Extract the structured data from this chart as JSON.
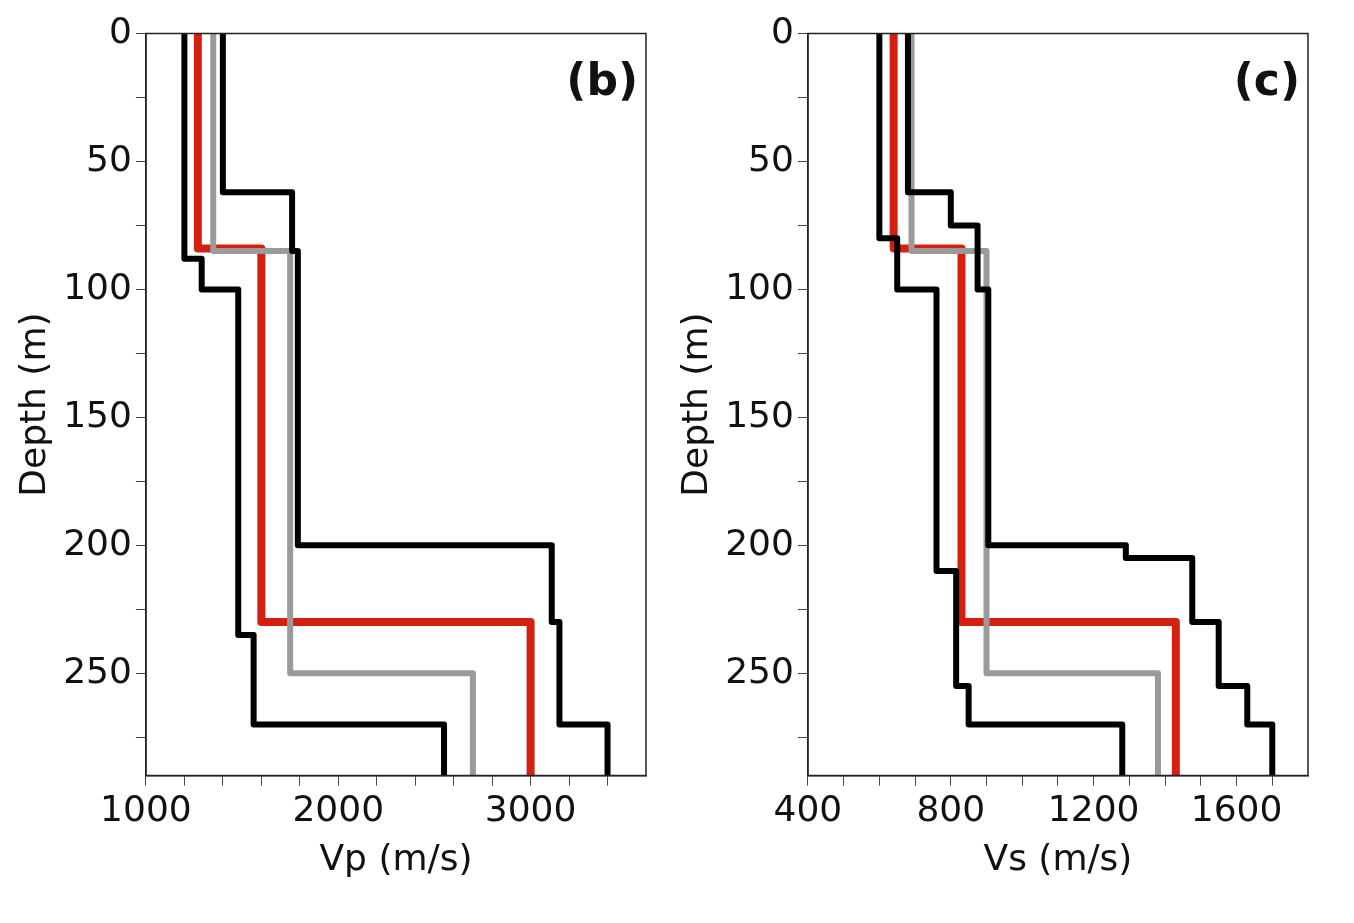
{
  "chart_data": [
    {
      "type": "line",
      "xlabel": "Vp (m/s)",
      "ylabel": "Depth (m)",
      "annotations": [
        "(b)"
      ],
      "xlim": [
        1000,
        3600
      ],
      "ylim": [
        290,
        0
      ],
      "xticks": [
        1000,
        {
          "value": 1200,
          "label": null
        },
        {
          "value": 1400,
          "label": null
        },
        {
          "value": 1600,
          "label": null
        },
        {
          "value": 1800,
          "label": null
        },
        2000,
        {
          "value": 2200,
          "label": null
        },
        {
          "value": 2400,
          "label": null
        },
        {
          "value": 2600,
          "label": null
        },
        {
          "value": 2800,
          "label": null
        },
        3000,
        {
          "value": 3200,
          "label": null
        },
        {
          "value": 3400,
          "label": null
        }
      ],
      "yticks": [
        0,
        {
          "value": 25,
          "label": null
        },
        50,
        {
          "value": 75,
          "label": null
        },
        100,
        {
          "value": 125,
          "label": null
        },
        150,
        {
          "value": 175,
          "label": null
        },
        200,
        {
          "value": 225,
          "label": null
        },
        250,
        {
          "value": 275,
          "label": null
        }
      ],
      "grid": false,
      "legend": false,
      "marker": "none",
      "line_style": "solid",
      "series": [
        {
          "color": "#000000",
          "x": [
            1200,
            1200,
            1290,
            1290,
            1480,
            1480,
            1560,
            1560,
            2550,
            2550
          ],
          "values": [
            0,
            88,
            88,
            100,
            100,
            235,
            235,
            270,
            270,
            290
          ]
        },
        {
          "color": "#000000",
          "x": [
            1400,
            1400,
            1760,
            1760,
            1790,
            1790,
            3110,
            3110,
            3150,
            3150,
            3400,
            3400
          ],
          "values": [
            0,
            62,
            62,
            85,
            85,
            200,
            200,
            230,
            230,
            270,
            270,
            290
          ]
        },
        {
          "color": "#9a9a9a",
          "x": [
            1350,
            1350,
            1750,
            1750,
            2700,
            2700
          ],
          "values": [
            0,
            85,
            85,
            250,
            250,
            290
          ]
        },
        {
          "color": "#d42010",
          "x": [
            1270,
            1270,
            1600,
            1600,
            3000,
            3000
          ],
          "values": [
            0,
            84,
            84,
            230,
            230,
            290
          ]
        }
      ]
    },
    {
      "type": "line",
      "xlabel": "Vs (m/s)",
      "ylabel": "Depth (m)",
      "annotations": [
        "(c)"
      ],
      "xlim": [
        400,
        1800
      ],
      "ylim": [
        290,
        0
      ],
      "xticks": [
        400,
        {
          "value": 500,
          "label": null
        },
        {
          "value": 600,
          "label": null
        },
        {
          "value": 700,
          "label": null
        },
        800,
        {
          "value": 900,
          "label": null
        },
        {
          "value": 1000,
          "label": null
        },
        {
          "value": 1100,
          "label": null
        },
        1200,
        {
          "value": 1300,
          "label": null
        },
        {
          "value": 1400,
          "label": null
        },
        {
          "value": 1500,
          "label": null
        },
        1600,
        {
          "value": 1700,
          "label": null
        }
      ],
      "yticks": [
        0,
        {
          "value": 25,
          "label": null
        },
        50,
        {
          "value": 75,
          "label": null
        },
        100,
        {
          "value": 125,
          "label": null
        },
        150,
        {
          "value": 175,
          "label": null
        },
        200,
        {
          "value": 225,
          "label": null
        },
        250,
        {
          "value": 275,
          "label": null
        }
      ],
      "grid": false,
      "legend": false,
      "marker": "none",
      "line_style": "solid",
      "series": [
        {
          "color": "#000000",
          "x": [
            600,
            600,
            650,
            650,
            760,
            760,
            815,
            815,
            850,
            850,
            1280,
            1280
          ],
          "values": [
            0,
            80,
            80,
            100,
            100,
            210,
            210,
            255,
            255,
            270,
            270,
            290
          ]
        },
        {
          "color": "#000000",
          "x": [
            680,
            680,
            800,
            800,
            875,
            875,
            905,
            905,
            1290,
            1290,
            1476,
            1476,
            1550,
            1550,
            1630,
            1630,
            1700,
            1700
          ],
          "values": [
            0,
            62,
            62,
            75,
            75,
            100,
            100,
            200,
            200,
            205,
            205,
            230,
            230,
            255,
            255,
            270,
            270,
            290
          ]
        },
        {
          "color": "#9a9a9a",
          "x": [
            690,
            690,
            900,
            900,
            1380,
            1380
          ],
          "values": [
            0,
            85,
            85,
            250,
            250,
            290
          ]
        },
        {
          "color": "#d42010",
          "x": [
            640,
            640,
            830,
            830,
            1430,
            1430
          ],
          "values": [
            0,
            84,
            84,
            230,
            230,
            290
          ]
        }
      ]
    }
  ]
}
